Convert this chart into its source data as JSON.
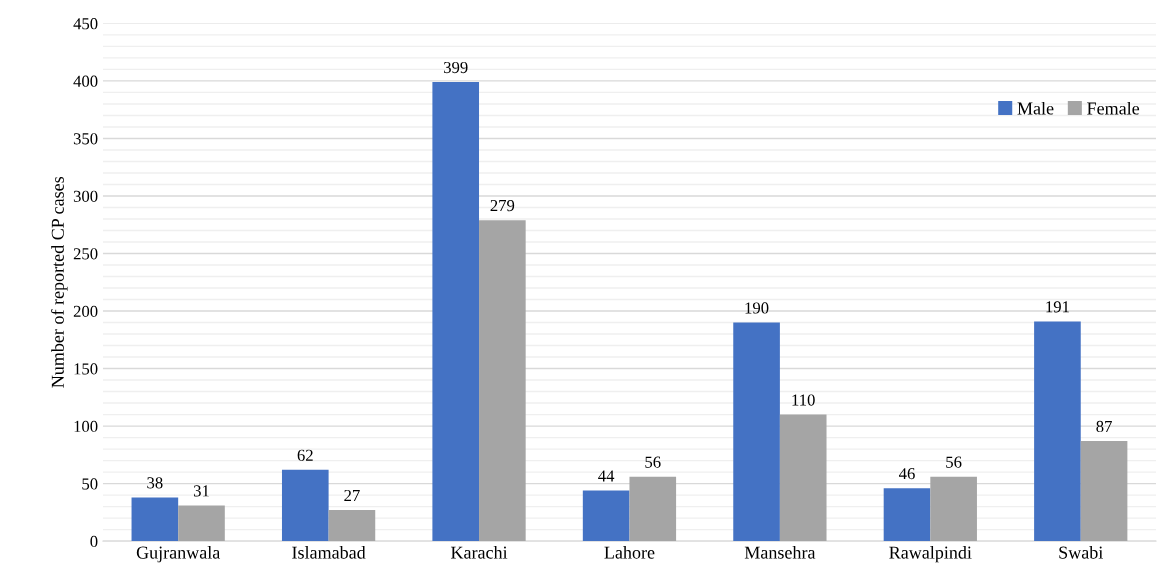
{
  "chart_data": {
    "type": "bar",
    "ylabel": "Number of reported CP cases",
    "categories": [
      "Gujranwala",
      "Islamabad",
      "Karachi",
      "Lahore",
      "Mansehra",
      "Rawalpindi",
      "Swabi"
    ],
    "series": [
      {
        "name": "Male",
        "color": "#4472c4",
        "values": [
          38,
          62,
          399,
          44,
          190,
          46,
          191
        ]
      },
      {
        "name": "Female",
        "color": "#a5a5a5",
        "values": [
          31,
          27,
          279,
          56,
          110,
          56,
          87
        ]
      }
    ],
    "ylim": [
      0,
      450
    ],
    "yticks": [
      0,
      {
        "value": 10,
        "label": null
      },
      {
        "value": 20,
        "label": null
      },
      {
        "value": 30,
        "label": null
      },
      {
        "value": 40,
        "label": null
      },
      50,
      {
        "value": 60,
        "label": null
      },
      {
        "value": 70,
        "label": null
      },
      {
        "value": 80,
        "label": null
      },
      {
        "value": 90,
        "label": null
      },
      100,
      {
        "value": 110,
        "label": null
      },
      {
        "value": 120,
        "label": null
      },
      {
        "value": 130,
        "label": null
      },
      {
        "value": 140,
        "label": null
      },
      150,
      {
        "value": 160,
        "label": null
      },
      {
        "value": 170,
        "label": null
      },
      {
        "value": 180,
        "label": null
      },
      {
        "value": 190,
        "label": null
      },
      200,
      {
        "value": 210,
        "label": null
      },
      {
        "value": 220,
        "label": null
      },
      {
        "value": 230,
        "label": null
      },
      {
        "value": 240,
        "label": null
      },
      250,
      {
        "value": 260,
        "label": null
      },
      {
        "value": 270,
        "label": null
      },
      {
        "value": 280,
        "label": null
      },
      {
        "value": 290,
        "label": null
      },
      300,
      {
        "value": 310,
        "label": null
      },
      {
        "value": 320,
        "label": null
      },
      {
        "value": 330,
        "label": null
      },
      {
        "value": 340,
        "label": null
      },
      350,
      {
        "value": 360,
        "label": null
      },
      {
        "value": 370,
        "label": null
      },
      {
        "value": 380,
        "label": null
      },
      {
        "value": 390,
        "label": null
      },
      400,
      {
        "value": 410,
        "label": null
      },
      {
        "value": 420,
        "label": null
      },
      {
        "value": 430,
        "label": null
      },
      {
        "value": 440,
        "label": null
      },
      450
    ],
    "grid": "y",
    "legend": "top right",
    "data_labels": true
  }
}
